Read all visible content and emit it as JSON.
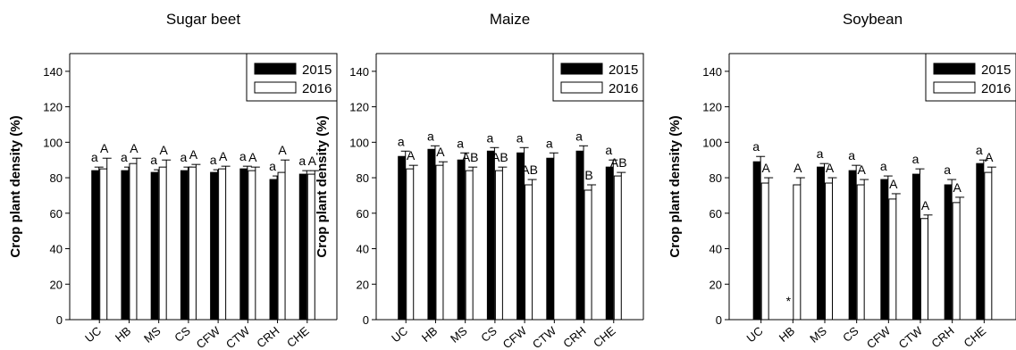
{
  "chart_data": [
    {
      "type": "bar",
      "title": "Sugar beet",
      "ylabel": "Crop plant density (%)",
      "xlabel": "",
      "ylim": [
        0,
        150
      ],
      "yticks": [
        0,
        20,
        40,
        60,
        80,
        100,
        120,
        140
      ],
      "grid": false,
      "legend_position": "top-right",
      "categories": [
        "UC",
        "HB",
        "MS",
        "CS",
        "CFW",
        "CTW",
        "CRH",
        "CHE"
      ],
      "series": [
        {
          "name": "2015",
          "color": "#000000",
          "values": [
            84,
            84,
            83,
            84,
            83,
            85,
            79,
            82
          ],
          "errors": [
            2,
            2,
            1.5,
            2,
            1.5,
            1.5,
            2,
            2
          ],
          "letters": [
            "a",
            "a",
            "a",
            "a",
            "a",
            "a",
            "a",
            "a"
          ]
        },
        {
          "name": "2016",
          "color": "#ffffff",
          "values": [
            85,
            88,
            86,
            86,
            85,
            84,
            83,
            82
          ],
          "errors": [
            6,
            3,
            4,
            1.5,
            1.5,
            2,
            7,
            2
          ],
          "letters": [
            "A",
            "A",
            "A",
            "A",
            "A",
            "A",
            "A",
            "A"
          ]
        }
      ],
      "annotations": []
    },
    {
      "type": "bar",
      "title": "Maize",
      "ylabel": "Crop plant density (%)",
      "xlabel": "",
      "ylim": [
        0,
        150
      ],
      "yticks": [
        0,
        20,
        40,
        60,
        80,
        100,
        120,
        140
      ],
      "grid": false,
      "legend_position": "top-right",
      "categories": [
        "UC",
        "HB",
        "MS",
        "CS",
        "CFW",
        "CTW",
        "CRH",
        "CHE"
      ],
      "series": [
        {
          "name": "2015",
          "color": "#000000",
          "values": [
            92,
            96,
            90,
            95,
            94,
            91,
            95,
            86
          ],
          "errors": [
            3,
            2,
            4,
            2,
            3,
            3,
            3,
            4
          ],
          "letters": [
            "a",
            "a",
            "a",
            "a",
            "a",
            "a",
            "a",
            "a"
          ]
        },
        {
          "name": "2016",
          "color": "#ffffff",
          "values": [
            85,
            87,
            84,
            84,
            76,
            null,
            73,
            81
          ],
          "errors": [
            2,
            2,
            2,
            2,
            3,
            0,
            3,
            2
          ],
          "letters": [
            "A",
            "A",
            "AB",
            "AB",
            "AB",
            "",
            "B",
            "AB"
          ]
        }
      ],
      "annotations": [
        {
          "category": "CRH",
          "text": "*"
        }
      ]
    },
    {
      "type": "bar",
      "title": "Soybean",
      "ylabel": "Crop plant density (%)",
      "xlabel": "",
      "ylim": [
        0,
        150
      ],
      "yticks": [
        0,
        20,
        40,
        60,
        80,
        100,
        120,
        140
      ],
      "grid": false,
      "legend_position": "top-right",
      "categories": [
        "UC",
        "HB",
        "MS",
        "CS",
        "CFW",
        "CTW",
        "CRH",
        "CHE"
      ],
      "series": [
        {
          "name": "2015",
          "color": "#000000",
          "values": [
            89,
            null,
            86,
            84,
            79,
            82,
            76,
            88
          ],
          "errors": [
            3,
            0,
            2,
            3,
            2,
            3,
            3,
            2
          ],
          "letters": [
            "a",
            "",
            "a",
            "a",
            "a",
            "a",
            "a",
            "a"
          ]
        },
        {
          "name": "2016",
          "color": "#ffffff",
          "values": [
            77,
            76,
            77,
            76,
            68,
            57,
            66,
            83
          ],
          "errors": [
            3,
            4,
            3,
            3,
            3,
            2,
            3,
            3
          ],
          "letters": [
            "A",
            "A",
            "A",
            "A",
            "A",
            "A",
            "A",
            "A"
          ]
        }
      ],
      "annotations": [
        {
          "category": "HB",
          "text": "*"
        }
      ]
    }
  ]
}
